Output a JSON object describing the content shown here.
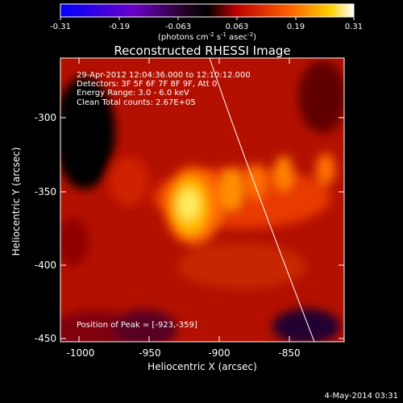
{
  "colorbar": {
    "ticks": [
      "-0.31",
      "-0.19",
      "-0.063",
      "0.063",
      "0.19",
      "0.31"
    ],
    "units_prefix": "(photons cm",
    "units_sup1": "-2",
    "units_mid": " s",
    "units_sup2": "-1",
    "units_mid2": " asec",
    "units_sup3": "-2",
    "units_suffix": ")"
  },
  "title": "Reconstructed RHESSI Image",
  "info_lines": [
    "29-Apr-2012 12:04:36.000 to 12:10:12.000",
    "Detectors: 3F 5F 6F 7F 8F 9F, Att 0",
    "Energy Range: 3.0 - 6.0 keV",
    "Clean     Total counts: 2.67E+05"
  ],
  "peak_label": "Position of Peak = [-923,-359]",
  "x_axis": {
    "label": "Heliocentric X (arcsec)",
    "ticks": [
      "-1000",
      "-950",
      "-900",
      "-850"
    ]
  },
  "y_axis": {
    "label": "Heliocentric Y (arcsec)",
    "ticks": [
      "-300",
      "-350",
      "-400",
      "-450"
    ]
  },
  "footer_timestamp": "4-May-2014 03:31",
  "colors": {
    "background": "#000000",
    "text": "#ffffff"
  }
}
